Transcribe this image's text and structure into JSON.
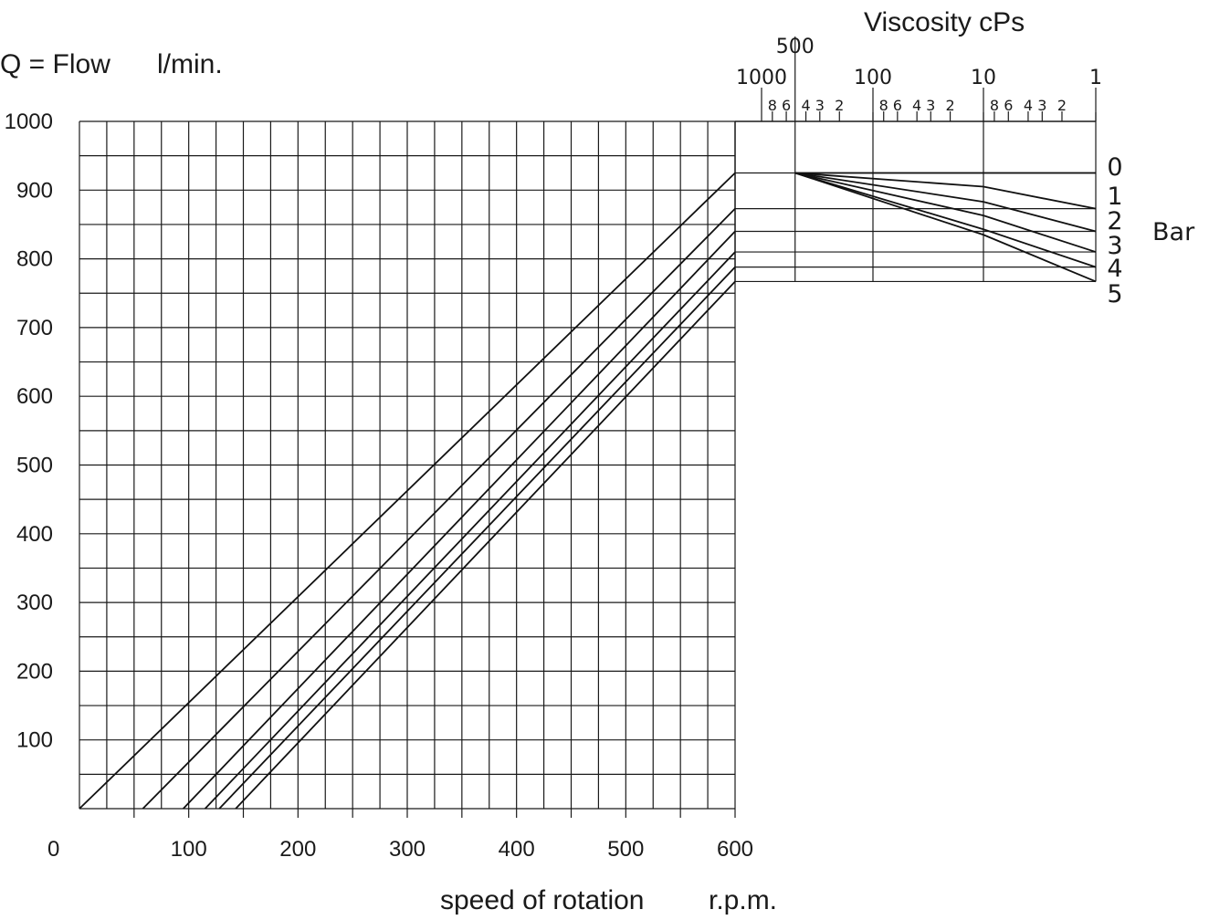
{
  "chart_data": {
    "type": "line",
    "y_title_left": "Q = Flow",
    "y_title_unit": "l/min.",
    "x_title": "speed of rotation",
    "x_title_unit": "r.p.m.",
    "viscosity_title": "Viscosity cPs",
    "bar_title": "Bar",
    "x_origin_label": "0",
    "xlim": [
      0,
      600
    ],
    "ylim": [
      0,
      1000
    ],
    "x_ticks": [
      "100",
      "200",
      "300",
      "400",
      "500",
      "600"
    ],
    "y_ticks": [
      "1000",
      "900",
      "800",
      "700",
      "600",
      "500",
      "400",
      "300",
      "200",
      "100"
    ],
    "viscosity_major_ticks": [
      "500",
      "1000",
      "100",
      "10",
      "1"
    ],
    "viscosity_minor_ticks": [
      "8",
      "6",
      "4",
      "3",
      "2",
      "8",
      "6",
      "4",
      "3",
      "2",
      "8",
      "6",
      "4",
      "3",
      "2"
    ],
    "series": [
      {
        "name": "0",
        "x": [
          0,
          600
        ],
        "y": [
          0,
          925
        ],
        "visc_knee": null,
        "flow_at_1cps": 925
      },
      {
        "name": "1",
        "x": [
          58,
          600
        ],
        "y": [
          0,
          873
        ],
        "visc_knee": 10,
        "flow_at_10cps": 905,
        "flow_at_1cps": 873
      },
      {
        "name": "2",
        "x": [
          95,
          600
        ],
        "y": [
          0,
          840
        ],
        "visc_knee": 10,
        "flow_at_10cps": 883,
        "flow_at_1cps": 840
      },
      {
        "name": "3",
        "x": [
          115,
          600
        ],
        "y": [
          0,
          810
        ],
        "visc_knee": 10,
        "flow_at_10cps": 863,
        "flow_at_1cps": 810
      },
      {
        "name": "4",
        "x": [
          128,
          600
        ],
        "y": [
          0,
          788
        ],
        "visc_knee": 10,
        "flow_at_10cps": 843,
        "flow_at_1cps": 788
      },
      {
        "name": "5",
        "x": [
          143,
          600
        ],
        "y": [
          0,
          767
        ],
        "visc_knee": 10,
        "flow_at_10cps": 835,
        "flow_at_1cps": 767
      }
    ],
    "viscosity_start_cps": 500,
    "viscosity_start_flow": 925
  }
}
